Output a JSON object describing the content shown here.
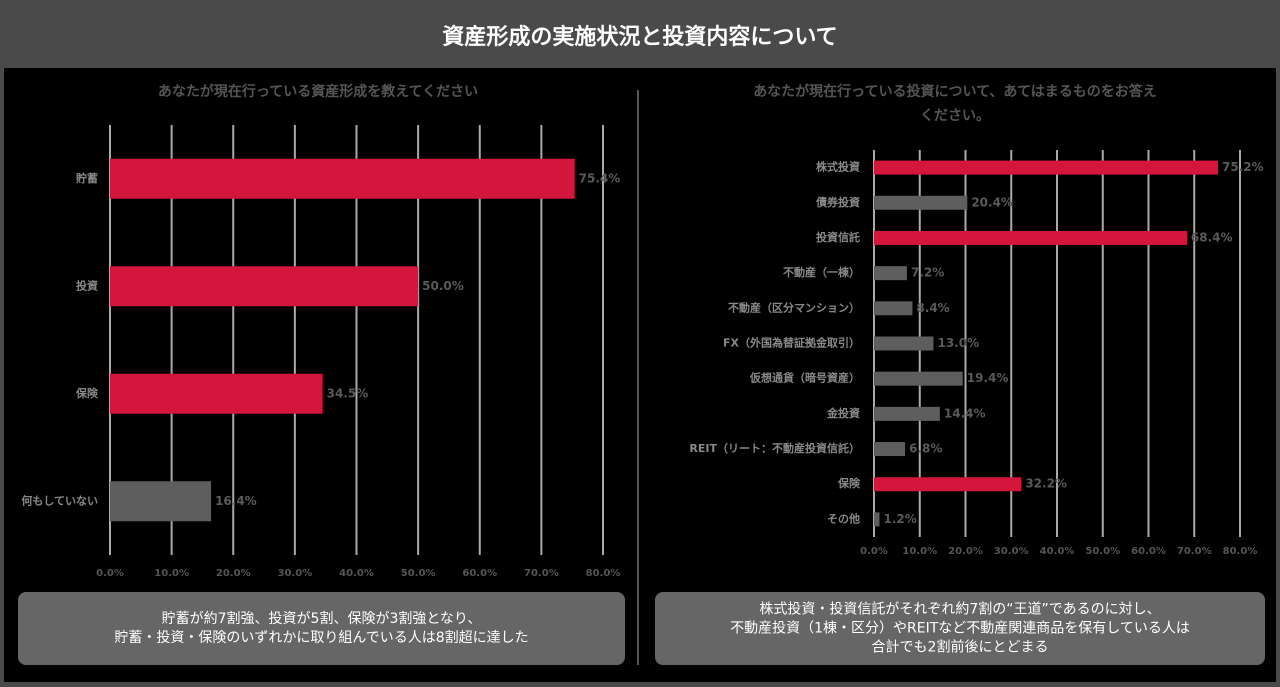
{
  "title": "資産形成の実施状況と投資内容について",
  "chart_data": [
    {
      "type": "hbar",
      "title": [
        "あなたが現在行っている資産形成を教えてください"
      ],
      "categories": [
        "貯蓄",
        "投資",
        "保険",
        "何もしていない"
      ],
      "values": [
        75.4,
        50.0,
        34.5,
        16.4
      ],
      "value_labels": [
        "75.4%",
        "50.0%",
        "34.5%",
        "16.4%"
      ],
      "colors": [
        "#d4163c",
        "#d4163c",
        "#d4163c",
        "#5e5e5e"
      ],
      "xlim": [
        0,
        80
      ],
      "xticks": [
        {
          "value": 0,
          "label": "0.0%"
        },
        {
          "value": 10,
          "label": "10.0%"
        },
        {
          "value": 20,
          "label": "20.0%"
        },
        {
          "value": 30,
          "label": "30.0%"
        },
        {
          "value": 40,
          "label": "40.0%"
        },
        {
          "value": 50,
          "label": "50.0%"
        },
        {
          "value": 60,
          "label": "60.0%"
        },
        {
          "value": 70,
          "label": "70.0%"
        },
        {
          "value": 80,
          "label": "80.0%"
        }
      ],
      "grid": true,
      "caption": [
        "貯蓄が約7割強、投資が5割、保険が3割強となり、",
        "貯蓄・投資・保険のいずれかに取り組んでいる人は8割超に達した"
      ]
    },
    {
      "type": "hbar",
      "title": [
        "あなたが現在行っている投資について、あてはまるものをお答え",
        "ください。"
      ],
      "categories": [
        "株式投資",
        "債券投資",
        "投資信託",
        "不動産（一棟）",
        "不動産（区分マンション）",
        "FX（外国為替証拠金取引）",
        "仮想通貨（暗号資産）",
        "金投資",
        "REIT（リート：不動産投資信託）",
        "保険",
        "その他"
      ],
      "values": [
        75.2,
        20.4,
        68.4,
        7.2,
        8.4,
        13.0,
        19.4,
        14.4,
        6.8,
        32.2,
        1.2
      ],
      "value_labels": [
        "75.2%",
        "20.4%",
        "68.4%",
        "7.2%",
        "8.4%",
        "13.0%",
        "19.4%",
        "14.4%",
        "6.8%",
        "32.2%",
        "1.2%"
      ],
      "colors": [
        "#d4163c",
        "#5e5e5e",
        "#d4163c",
        "#5e5e5e",
        "#5e5e5e",
        "#5e5e5e",
        "#5e5e5e",
        "#5e5e5e",
        "#5e5e5e",
        "#d4163c",
        "#5e5e5e"
      ],
      "xlim": [
        0,
        80
      ],
      "xticks": [
        {
          "value": 0,
          "label": "0.0%"
        },
        {
          "value": 10,
          "label": "10.0%"
        },
        {
          "value": 20,
          "label": "20.0%"
        },
        {
          "value": 30,
          "label": "30.0%"
        },
        {
          "value": 40,
          "label": "40.0%"
        },
        {
          "value": 50,
          "label": "50.0%"
        },
        {
          "value": 60,
          "label": "60.0%"
        },
        {
          "value": 70,
          "label": "70.0%"
        },
        {
          "value": 80,
          "label": "80.0%"
        }
      ],
      "grid": true,
      "caption": [
        "株式投資・投資信託がそれぞれ約7割の“王道”であるのに対し、",
        "不動産投資（1棟・区分）やREITなど不動産関連商品を保有している人は",
        "合計でも2割前後にとどまる"
      ]
    }
  ]
}
